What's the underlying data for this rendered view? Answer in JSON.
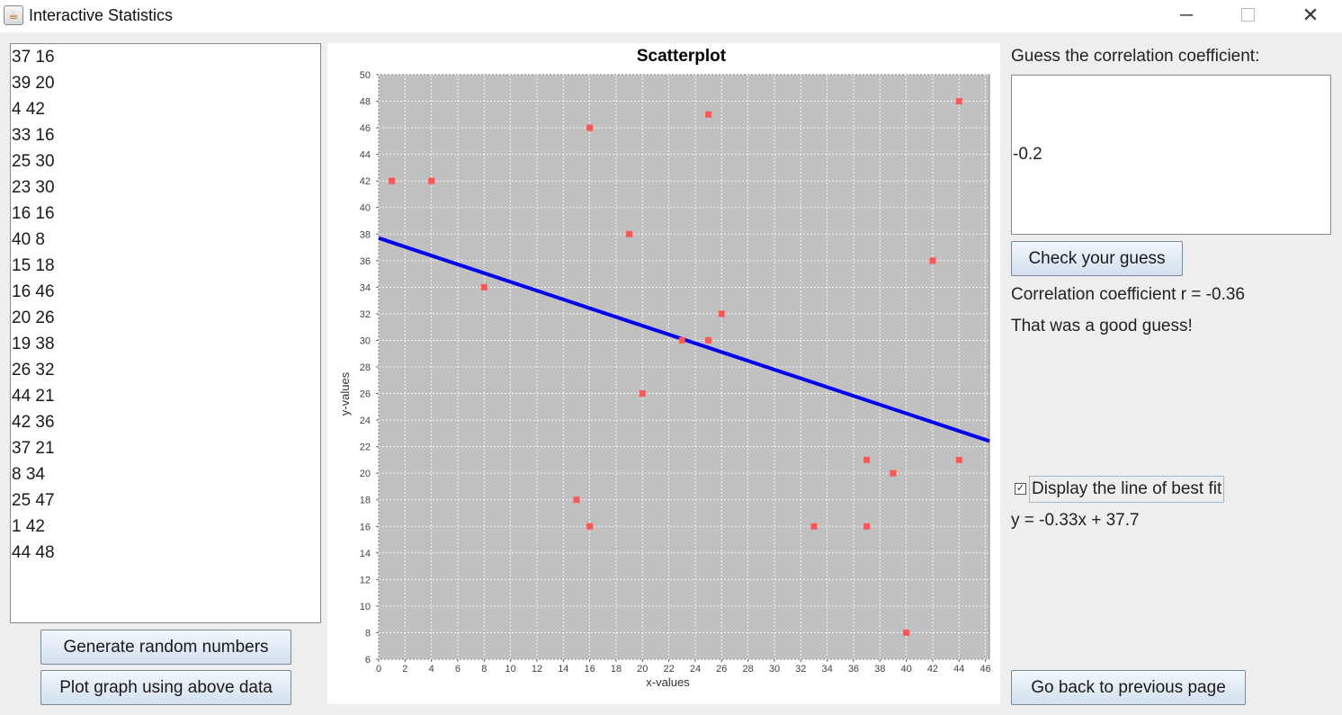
{
  "window": {
    "title": "Interactive Statistics",
    "icon": "java-cup-icon",
    "controls": {
      "minimize": "─",
      "close": "✕"
    }
  },
  "data_list": [
    "37 16",
    "39 20",
    "4 42",
    "33 16",
    "25 30",
    "23 30",
    "16 16",
    "40 8",
    "15 18",
    "16 46",
    "20 26",
    "19 38",
    "26 32",
    "44 21",
    "42 36",
    "37 21",
    "8 34",
    "25 47",
    "1 42",
    "44 48"
  ],
  "buttons": {
    "generate": "Generate random numbers",
    "plot": "Plot graph using above data",
    "check": "Check your guess",
    "back": "Go back to previous page"
  },
  "guess": {
    "prompt": "Guess the correlation coefficient:",
    "value": "-0.2"
  },
  "result": {
    "correlation": "Correlation coefficient r = -0.36",
    "message": "That was a good guess!"
  },
  "best_fit": {
    "checkbox_label": "Display the line of best fit",
    "checked": true,
    "equation": "y = -0.33x + 37.7"
  },
  "colors": {
    "plot_background": "#c0c0c0",
    "point": "#ff5555",
    "fit_line": "#0000ee"
  },
  "chart_data": {
    "type": "scatter",
    "title": "Scatterplot",
    "xlabel": "x-values",
    "ylabel": "y-values",
    "xlim": [
      0,
      46.3
    ],
    "ylim": [
      6,
      50
    ],
    "x_ticks": [
      0,
      2,
      4,
      6,
      8,
      10,
      12,
      14,
      16,
      18,
      20,
      22,
      24,
      26,
      28,
      30,
      32,
      34,
      36,
      38,
      40,
      42,
      44,
      46
    ],
    "y_ticks": [
      6,
      8,
      10,
      12,
      14,
      16,
      18,
      20,
      22,
      24,
      26,
      28,
      30,
      32,
      34,
      36,
      38,
      40,
      42,
      44,
      46,
      48,
      50
    ],
    "grid": true,
    "series": [
      {
        "points": [
          [
            37,
            16
          ],
          [
            39,
            20
          ],
          [
            4,
            42
          ],
          [
            33,
            16
          ],
          [
            25,
            30
          ],
          [
            23,
            30
          ],
          [
            16,
            16
          ],
          [
            40,
            8
          ],
          [
            15,
            18
          ],
          [
            16,
            46
          ],
          [
            20,
            26
          ],
          [
            19,
            38
          ],
          [
            26,
            32
          ],
          [
            44,
            21
          ],
          [
            42,
            36
          ],
          [
            37,
            21
          ],
          [
            8,
            34
          ],
          [
            25,
            47
          ],
          [
            1,
            42
          ],
          [
            44,
            48
          ]
        ]
      }
    ],
    "fit_line": {
      "slope": -0.33,
      "intercept": 37.7
    }
  }
}
